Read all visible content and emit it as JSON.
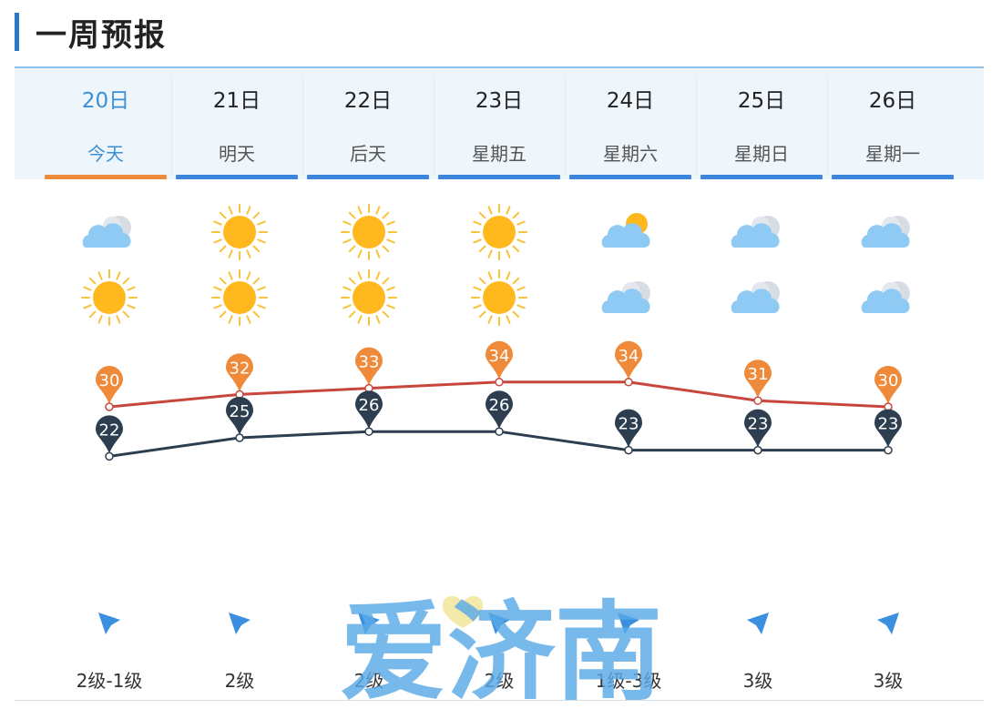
{
  "header": {
    "title": "一周预报"
  },
  "days": [
    {
      "date": "20日",
      "weekday": "今天",
      "day_icon": "partly-cloudy-icon",
      "night_icon": "sun-icon",
      "high": 30,
      "low": 22,
      "wind_dir": "northwest",
      "wind": "2级-1级"
    },
    {
      "date": "21日",
      "weekday": "明天",
      "day_icon": "sun-icon",
      "night_icon": "sun-icon",
      "high": 32,
      "low": 25,
      "wind_dir": "northwest",
      "wind": "2级"
    },
    {
      "date": "22日",
      "weekday": "后天",
      "day_icon": "sun-icon",
      "night_icon": "sun-icon",
      "high": 33,
      "low": 26,
      "wind_dir": "northwest",
      "wind": "2级"
    },
    {
      "date": "23日",
      "weekday": "星期五",
      "day_icon": "sun-icon",
      "night_icon": "sun-icon",
      "high": 34,
      "low": 26,
      "wind_dir": "northwest",
      "wind": "2级"
    },
    {
      "date": "24日",
      "weekday": "星期六",
      "day_icon": "cloudy-sun-icon",
      "night_icon": "cloudy-icon",
      "high": 34,
      "low": 23,
      "wind_dir": "northwest",
      "wind": "1级-3级"
    },
    {
      "date": "25日",
      "weekday": "星期日",
      "day_icon": "cloudy-icon",
      "night_icon": "cloudy-icon",
      "high": 31,
      "low": 23,
      "wind_dir": "northeast",
      "wind": "3级"
    },
    {
      "date": "26日",
      "weekday": "星期一",
      "day_icon": "cloudy-icon",
      "night_icon": "cloudy-icon",
      "high": 30,
      "low": 23,
      "wind_dir": "northeast",
      "wind": "3级"
    }
  ],
  "watermark": {
    "text": "爱济南"
  },
  "colors": {
    "accent": "#3a86dc",
    "active": "#ee8a3a",
    "high_line": "#c8463c",
    "high_pin": "#ee8a3a",
    "low_line": "#2c3e50",
    "low_pin": "#2c3e50"
  }
}
